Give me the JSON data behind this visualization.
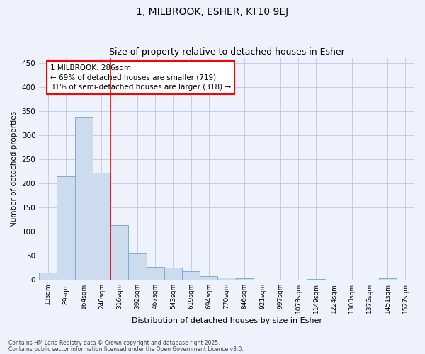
{
  "title1": "1, MILBROOK, ESHER, KT10 9EJ",
  "title2": "Size of property relative to detached houses in Esher",
  "xlabel": "Distribution of detached houses by size in Esher",
  "ylabel": "Number of detached properties",
  "bar_labels": [
    "13sqm",
    "89sqm",
    "164sqm",
    "240sqm",
    "316sqm",
    "392sqm",
    "467sqm",
    "543sqm",
    "619sqm",
    "694sqm",
    "770sqm",
    "846sqm",
    "921sqm",
    "997sqm",
    "1073sqm",
    "1149sqm",
    "1224sqm",
    "1300sqm",
    "1376sqm",
    "1451sqm",
    "1527sqm"
  ],
  "bar_values": [
    15,
    215,
    338,
    222,
    113,
    54,
    26,
    25,
    18,
    8,
    5,
    3,
    0,
    0,
    0,
    2,
    0,
    0,
    0,
    3,
    0
  ],
  "bar_color": "#ccdcee",
  "bar_edge_color": "#7aafd4",
  "red_line_x": 3.5,
  "annotation_text": "1 MILBROOK: 286sqm\n← 69% of detached houses are smaller (719)\n31% of semi-detached houses are larger (318) →",
  "annotation_box_color": "white",
  "annotation_box_edge_color": "red",
  "ylim": [
    0,
    460
  ],
  "background_color": "#eef2fc",
  "grid_color": "#c0c8dc",
  "footnote1": "Contains HM Land Registry data © Crown copyright and database right 2025.",
  "footnote2": "Contains public sector information licensed under the Open Government Licence v3.0."
}
